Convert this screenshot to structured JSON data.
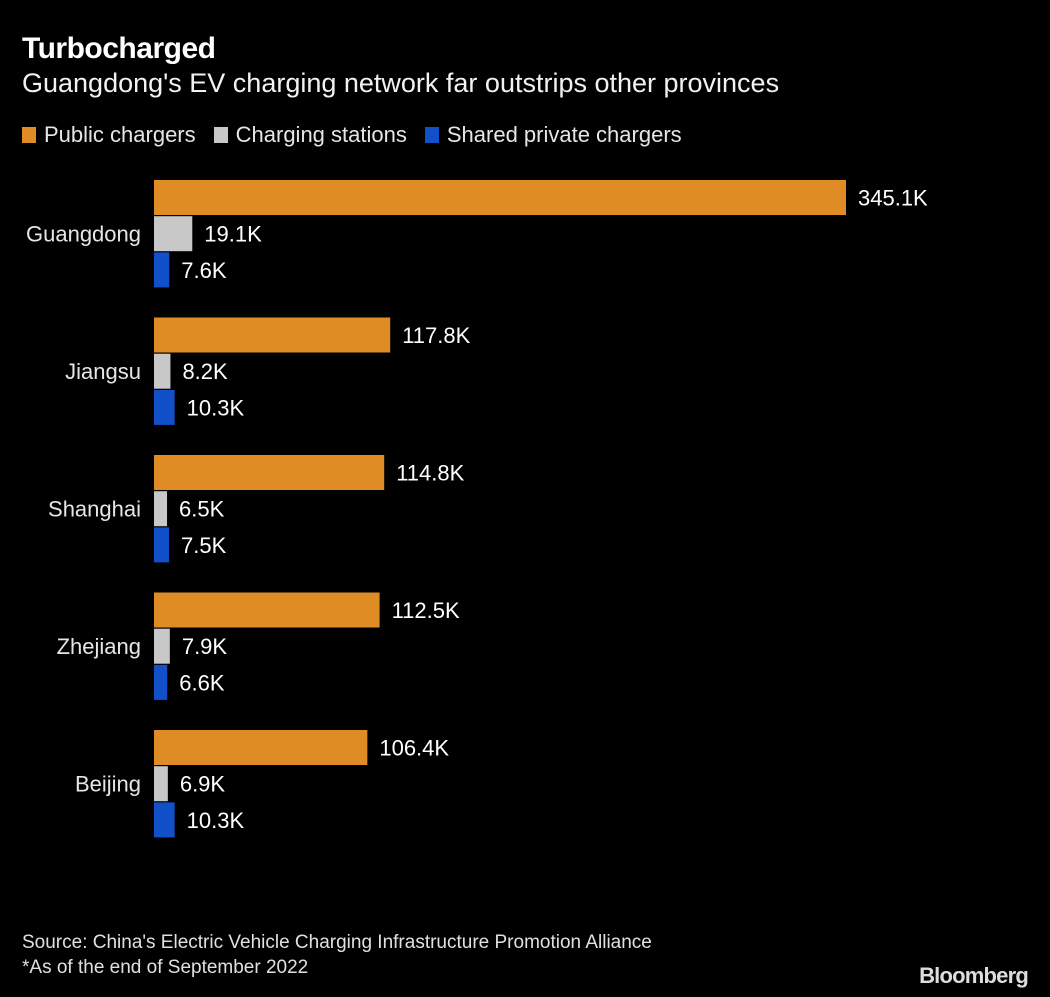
{
  "chart_data": {
    "type": "bar",
    "orientation": "horizontal",
    "title": "Turbocharged",
    "subtitle": "Guangdong's EV charging network far outstrips other provinces",
    "categories": [
      "Guangdong",
      "Jiangsu",
      "Shanghai",
      "Zhejiang",
      "Beijing"
    ],
    "series": [
      {
        "name": "Public chargers",
        "color": "#E08C25",
        "values": [
          345.1,
          117.8,
          114.8,
          112.5,
          106.4
        ],
        "labels": [
          "345.1K",
          "117.8K",
          "114.8K",
          "112.5K",
          "106.4K"
        ]
      },
      {
        "name": "Charging stations",
        "color": "#C8C8C8",
        "values": [
          19.1,
          8.2,
          6.5,
          7.9,
          6.9
        ],
        "labels": [
          "19.1K",
          "8.2K",
          "6.5K",
          "7.9K",
          "6.9K"
        ]
      },
      {
        "name": "Shared private chargers",
        "color": "#1150C8",
        "values": [
          7.6,
          10.3,
          7.5,
          6.6,
          10.3
        ],
        "labels": [
          "7.6K",
          "10.3K",
          "7.5K",
          "6.6K",
          "10.3K"
        ]
      }
    ],
    "unit": "K",
    "xlim": [
      0,
      345.1
    ],
    "grid": false,
    "legend_position": "top-left"
  },
  "footer": {
    "source": "Source: China's Electric Vehicle Charging Infrastructure Promotion Alliance",
    "note": "*As of the end of September 2022"
  },
  "brand": "Bloomberg"
}
